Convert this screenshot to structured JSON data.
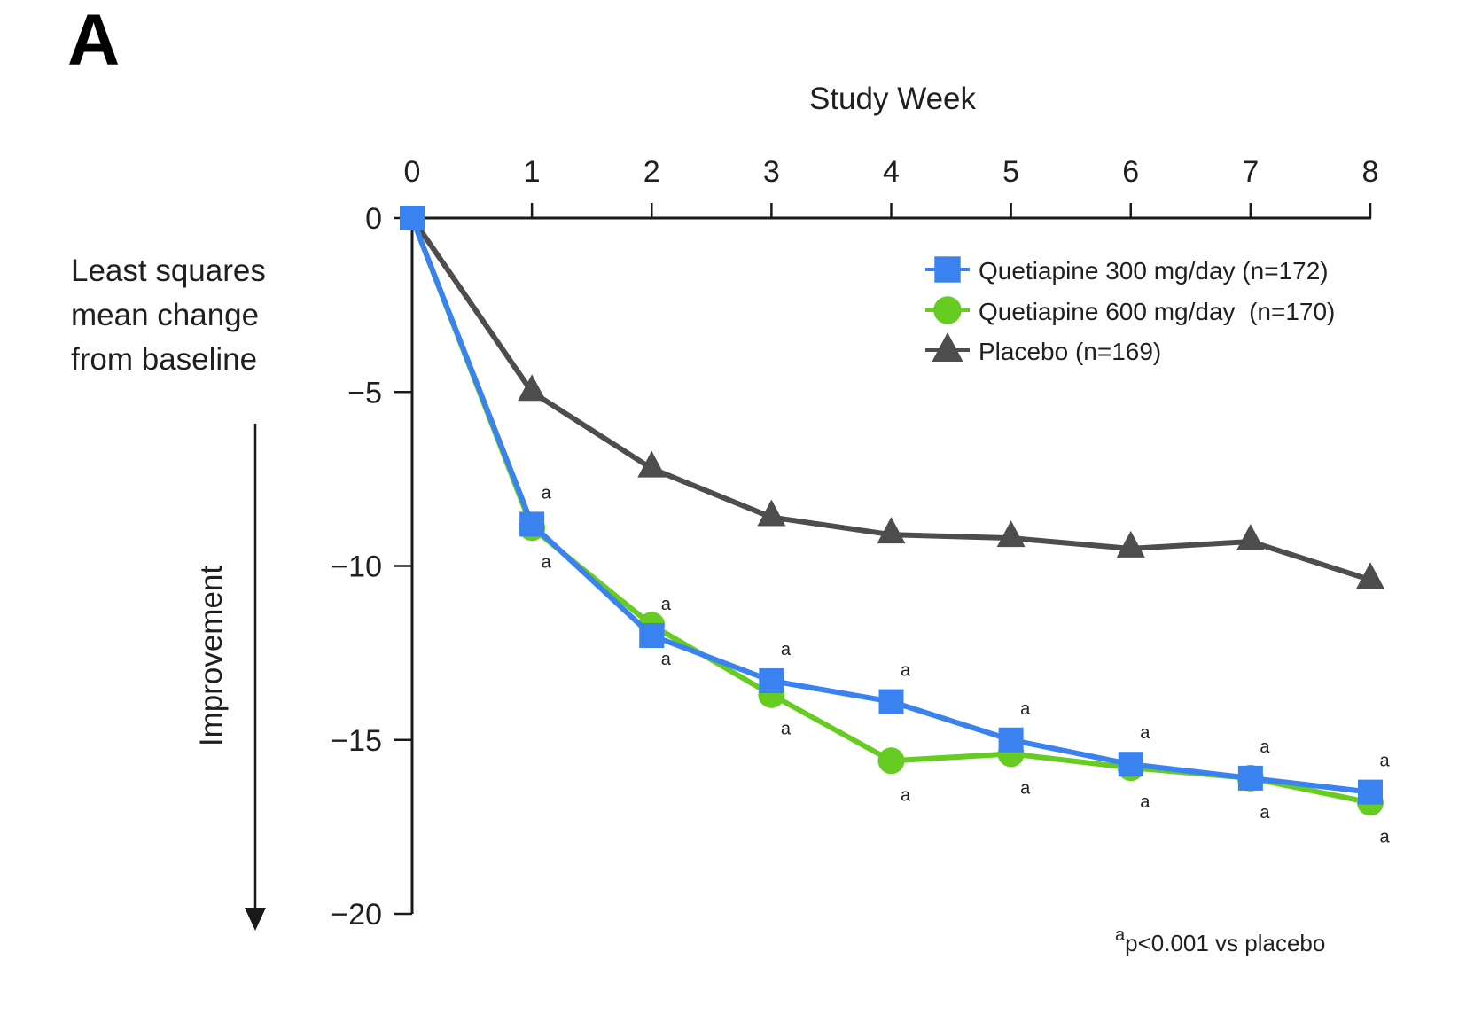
{
  "panel_label": "A",
  "chart_data": {
    "type": "line",
    "title": "",
    "xlabel": "Study Week",
    "ylabel": "Least squares mean change from baseline",
    "ylabel_lines": [
      "Least squares",
      "mean change",
      "from baseline"
    ],
    "direction_label": "Improvement",
    "x": [
      0,
      1,
      2,
      3,
      4,
      5,
      6,
      7,
      8
    ],
    "x_tick_labels": [
      "0",
      "1",
      "2",
      "3",
      "4",
      "5",
      "6",
      "7",
      "8"
    ],
    "xlim": [
      0,
      8
    ],
    "x_axis_position": "top",
    "y_ticks": [
      0,
      -5,
      -10,
      -15,
      -20
    ],
    "y_tick_labels": [
      "0",
      "−5",
      "−10",
      "−15",
      "−20"
    ],
    "ylim": [
      -20,
      0
    ],
    "grid": false,
    "legend_position": "top-right",
    "series": [
      {
        "name": "Quetiapine 300 mg/day (n=172)",
        "key": "quetiapine-300",
        "marker": "square",
        "color": "#3a82f0",
        "values": [
          0,
          -8.8,
          -12.0,
          -13.3,
          -13.9,
          -15.0,
          -15.7,
          -16.1,
          -16.5
        ],
        "significance": [
          "",
          "a",
          "a",
          "a",
          "a",
          "a",
          "a",
          "a",
          "a"
        ],
        "significance_side": "above"
      },
      {
        "name": "Quetiapine 600 mg/day  (n=170)",
        "key": "quetiapine-600",
        "marker": "circle",
        "color": "#66cc22",
        "values": [
          0,
          -8.9,
          -11.7,
          -13.7,
          -15.6,
          -15.4,
          -15.8,
          -16.1,
          -16.8
        ],
        "significance": [
          "",
          "a",
          "a",
          "a",
          "a",
          "a",
          "a",
          "a",
          "a"
        ],
        "significance_side": "below"
      },
      {
        "name": "Placebo (n=169)",
        "key": "placebo",
        "marker": "triangle",
        "color": "#4d4d4d",
        "values": [
          0,
          -5.0,
          -7.2,
          -8.6,
          -9.1,
          -9.2,
          -9.5,
          -9.3,
          -10.4
        ],
        "significance": [
          "",
          "",
          "",
          "",
          "",
          "",
          "",
          "",
          ""
        ]
      }
    ],
    "footnote": {
      "superscript": "a",
      "text": "p<0.001 vs placebo"
    }
  }
}
